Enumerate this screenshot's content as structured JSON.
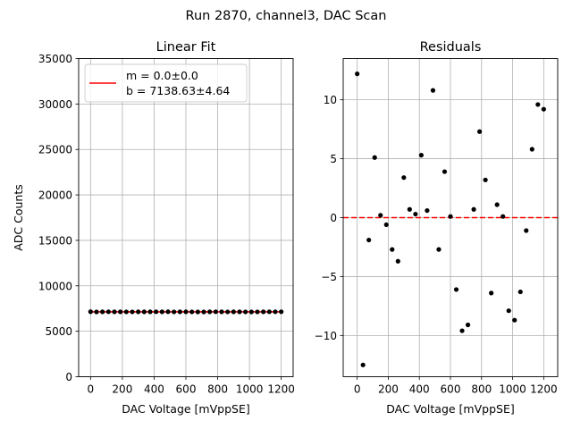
{
  "suptitle": "Run 2870, channel3, DAC Scan",
  "chart_data": [
    {
      "type": "scatter",
      "title": "Linear Fit",
      "xlabel": "DAC Voltage [mVppSE]",
      "ylabel": "ADC Counts",
      "xlim": [
        -75,
        1275
      ],
      "ylim": [
        0,
        35000
      ],
      "xticks": [
        0,
        200,
        400,
        600,
        800,
        1000,
        1200
      ],
      "xtick_labels": [
        "0",
        "200",
        "400",
        "600",
        "800",
        "1000",
        "1200"
      ],
      "yticks": [
        0,
        5000,
        10000,
        15000,
        20000,
        25000,
        30000,
        35000
      ],
      "ytick_labels": [
        "0",
        "5000",
        "10000",
        "15000",
        "20000",
        "25000",
        "30000",
        "35000"
      ],
      "grid": true,
      "legend_position": "top-left",
      "legend": [
        "m = 0.0±0.0",
        "b = 7138.63±4.64"
      ],
      "fit_color": "#ff0000",
      "point_color": "#000000",
      "x": [
        0,
        37.5,
        75,
        112.5,
        150,
        187.5,
        225,
        262.5,
        300,
        337.5,
        375,
        412.5,
        450,
        487.5,
        525,
        562.5,
        600,
        637.5,
        675,
        712.5,
        750,
        787.5,
        825,
        862.5,
        900,
        937.5,
        975,
        1012.5,
        1050,
        1087.5,
        1125,
        1162.5,
        1200
      ],
      "y": [
        7150,
        7126,
        7137,
        7144,
        7139,
        7138,
        7136,
        7135,
        7142,
        7139,
        7139,
        7144,
        7139,
        7149,
        7136,
        7142,
        7139,
        7132,
        7129,
        7130,
        7139,
        7146,
        7142,
        7132,
        7140,
        7139,
        7131,
        7130,
        7132,
        7138,
        7144,
        7148,
        7148
      ],
      "fit": {
        "m": 0.0,
        "b": 7138.63
      }
    },
    {
      "type": "scatter",
      "title": "Residuals",
      "xlabel": "DAC Voltage [mVppSE]",
      "ylabel": "",
      "xlim": [
        -90,
        1290
      ],
      "ylim": [
        -13.5,
        13.5
      ],
      "xticks": [
        0,
        200,
        400,
        600,
        800,
        1000,
        1200
      ],
      "xtick_labels": [
        "0",
        "200",
        "400",
        "600",
        "800",
        "1000",
        "1200"
      ],
      "yticks": [
        -10,
        -5,
        0,
        5,
        10
      ],
      "ytick_labels": [
        "−10",
        "−5",
        "0",
        "5",
        "10"
      ],
      "grid": true,
      "zero_line_color": "#ff0000",
      "point_color": "#000000",
      "x": [
        0,
        37.5,
        75,
        112.5,
        150,
        187.5,
        225,
        262.5,
        300,
        337.5,
        375,
        412.5,
        450,
        487.5,
        525,
        562.5,
        600,
        637.5,
        675,
        712.5,
        750,
        787.5,
        825,
        862.5,
        900,
        937.5,
        975,
        1012.5,
        1050,
        1087.5,
        1125,
        1162.5,
        1200
      ],
      "y": [
        12.2,
        -12.5,
        -1.9,
        5.1,
        0.2,
        -0.6,
        -2.7,
        -3.7,
        3.4,
        0.7,
        0.3,
        5.3,
        0.6,
        10.8,
        -2.7,
        3.9,
        0.1,
        -6.1,
        -9.6,
        -9.1,
        0.7,
        7.3,
        3.2,
        -6.4,
        1.1,
        0.1,
        -7.9,
        -8.7,
        -6.3,
        -1.1,
        5.8,
        9.6,
        9.2
      ]
    }
  ]
}
